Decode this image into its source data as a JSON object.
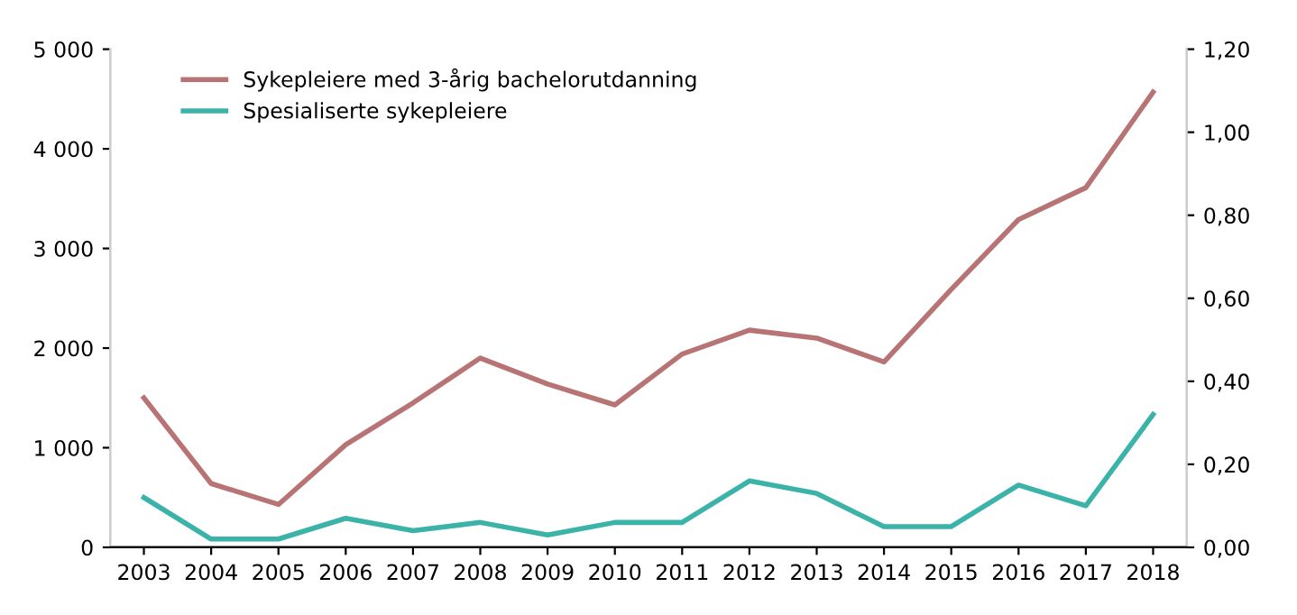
{
  "chart_data": {
    "type": "line",
    "categories": [
      "2003",
      "2004",
      "2005",
      "2006",
      "2007",
      "2008",
      "2009",
      "2010",
      "2011",
      "2012",
      "2013",
      "2014",
      "2015",
      "2016",
      "2017",
      "2018"
    ],
    "series": [
      {
        "name": "Sykepleiere med 3-årig bachelorutdanning",
        "color": "#b87474",
        "values": [
          1500,
          640,
          430,
          1030,
          1450,
          1900,
          1640,
          1430,
          1940,
          2180,
          2100,
          1860,
          2590,
          3290,
          3610,
          4570
        ]
      },
      {
        "name": "Spesialiserte sykepleiere",
        "color": "#3bb3a8",
        "axis": "y2",
        "values": [
          0.12,
          0.02,
          0.02,
          0.07,
          0.04,
          0.06,
          0.03,
          0.06,
          0.06,
          0.16,
          0.13,
          0.05,
          0.05,
          0.15,
          0.1,
          0.32
        ]
      }
    ],
    "ylim": [
      0,
      5000
    ],
    "yticks": [
      0,
      {
        "value": 1000,
        "label": "1 000"
      },
      {
        "value": 2000,
        "label": "2 000"
      },
      {
        "value": 3000,
        "label": "3 000"
      },
      {
        "value": 4000,
        "label": "4 000"
      },
      {
        "value": 5000,
        "label": "5 000"
      }
    ],
    "y2lim": [
      0,
      1.2
    ],
    "y2ticks": [
      {
        "value": 0,
        "label": "0,00"
      },
      {
        "value": 0.2,
        "label": "0,20"
      },
      {
        "value": 0.4,
        "label": "0,40"
      },
      {
        "value": 0.6,
        "label": "0,60"
      },
      {
        "value": 0.8,
        "label": "0,80"
      },
      {
        "value": 1.0,
        "label": "1,00"
      },
      {
        "value": 1.2,
        "label": "1,20"
      }
    ],
    "legend": "top left",
    "grid": false,
    "marker": "none",
    "line_style": "solid"
  }
}
